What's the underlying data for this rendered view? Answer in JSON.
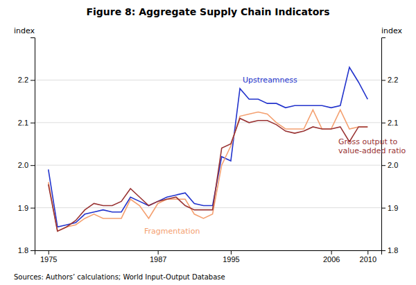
{
  "chart_data": {
    "type": "line",
    "title": "Figure 8: Aggregate Supply Chain Indicators",
    "y_label": "index",
    "y2_label": "index",
    "source": "Sources:  Authors’ calculations; World Input-Output Database",
    "x": [
      1975,
      1976,
      1977,
      1978,
      1979,
      1980,
      1981,
      1982,
      1983,
      1984,
      1985,
      1986,
      1987,
      1988,
      1989,
      1990,
      1991,
      1992,
      1993,
      1994,
      1995,
      1996,
      1997,
      1998,
      1999,
      2000,
      2001,
      2002,
      2003,
      2004,
      2005,
      2006,
      2007,
      2008,
      2009,
      2010
    ],
    "series": [
      {
        "name": "Upstreamness",
        "color": "#2233CC",
        "values": [
          1.99,
          1.855,
          1.86,
          1.865,
          1.885,
          1.89,
          1.895,
          1.89,
          1.89,
          1.925,
          1.915,
          1.905,
          1.915,
          1.925,
          1.93,
          1.935,
          1.91,
          1.905,
          1.905,
          2.02,
          2.01,
          2.18,
          2.155,
          2.155,
          2.145,
          2.145,
          2.135,
          2.14,
          2.14,
          2.14,
          2.14,
          2.135,
          2.14,
          2.23,
          2.195,
          2.155
        ]
      },
      {
        "name": "Fragmentation",
        "color": "#F4A070",
        "values": [
          1.96,
          1.845,
          1.855,
          1.86,
          1.875,
          1.885,
          1.875,
          1.875,
          1.875,
          1.92,
          1.905,
          1.875,
          1.91,
          1.92,
          1.92,
          1.92,
          1.885,
          1.875,
          1.885,
          2.0,
          2.045,
          2.115,
          2.12,
          2.125,
          2.12,
          2.1,
          2.085,
          2.085,
          2.085,
          2.13,
          2.085,
          2.085,
          2.13,
          2.085,
          2.09,
          2.09
        ]
      },
      {
        "name": "Gross output to\nvalue-added ratio",
        "color": "#993333",
        "values": [
          1.955,
          1.845,
          1.855,
          1.87,
          1.895,
          1.91,
          1.905,
          1.905,
          1.915,
          1.945,
          1.925,
          1.905,
          1.915,
          1.92,
          1.925,
          1.905,
          1.895,
          1.895,
          1.895,
          2.04,
          2.05,
          2.11,
          2.1,
          2.105,
          2.105,
          2.095,
          2.08,
          2.075,
          2.08,
          2.09,
          2.085,
          2.085,
          2.09,
          2.055,
          2.09,
          2.09
        ]
      }
    ],
    "xlim": [
      1973.5,
      2011.5
    ],
    "xticks": [
      1975,
      1987,
      1995,
      2006,
      2010
    ],
    "ylim": [
      1.8,
      2.3
    ],
    "yticks": [
      1.8,
      1.9,
      {
        "value": 2.0,
        "label": "2.0"
      },
      2.1,
      2.2
    ],
    "y2lim": [
      1.8,
      2.3
    ],
    "y2ticks": [
      1.8,
      1.9,
      {
        "value": 2.0,
        "label": "2.0"
      },
      2.1,
      2.2
    ],
    "grid": "y"
  }
}
